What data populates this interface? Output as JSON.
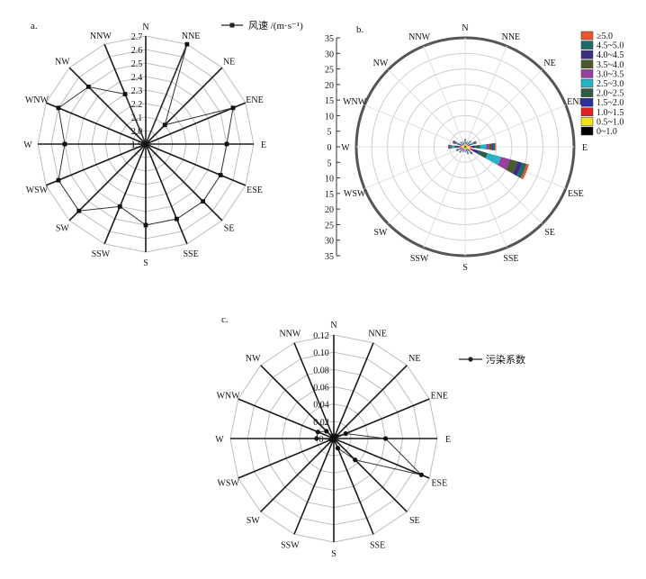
{
  "directions": [
    "N",
    "NNE",
    "NE",
    "ENE",
    "E",
    "ESE",
    "SE",
    "SSE",
    "S",
    "SSW",
    "SW",
    "WSW",
    "W",
    "WNW",
    "NW",
    "NNW"
  ],
  "panels": {
    "a": {
      "label": "a.",
      "legend": "风速 /(m·s⁻¹)"
    },
    "b": {
      "label": "b."
    },
    "c": {
      "label": "c.",
      "legend": "污染系数"
    }
  },
  "chart_data": [
    {
      "id": "a",
      "type": "radar",
      "categories": [
        "N",
        "NNE",
        "NE",
        "ENE",
        "E",
        "ESE",
        "SE",
        "SSE",
        "S",
        "SSW",
        "SW",
        "WSW",
        "W",
        "WNW",
        "NW",
        "NNW"
      ],
      "series": [
        {
          "name": "风速 /(m·s⁻¹)",
          "values": [
            1.9,
            2.7,
            2.1,
            2.6,
            2.5,
            2.5,
            2.5,
            2.5,
            2.5,
            2.4,
            2.6,
            2.6,
            2.5,
            2.6,
            2.5,
            2.3
          ]
        }
      ],
      "rlim": [
        1.9,
        2.7
      ],
      "rticks": [
        "1.9",
        "2.0",
        "2.1",
        "2.2",
        "2.3",
        "2.4",
        "2.5",
        "2.6",
        "2.7"
      ],
      "grid": true
    },
    {
      "id": "b",
      "type": "wind-rose",
      "categories": [
        "N",
        "NNE",
        "NE",
        "ENE",
        "E",
        "ESE",
        "SE",
        "SSE",
        "S",
        "SSW",
        "SW",
        "WSW",
        "W",
        "WNW",
        "NW",
        "NNW"
      ],
      "rlim": [
        0,
        35
      ],
      "rticks": [
        "35",
        "30",
        "25",
        "20",
        "15",
        "10",
        "5",
        "0",
        "5",
        "10",
        "15",
        "20",
        "25",
        "30",
        "35"
      ],
      "legend": [
        "≥5.0",
        "4.5~5.0",
        "4.0~4.5",
        "3.5~4.0",
        "3.0~3.5",
        "2.5~3.0",
        "2.0~2.5",
        "1.5~2.0",
        "1.0~1.5",
        "0.5~1.0",
        "0~1.0"
      ],
      "colors": [
        "#e8572a",
        "#1f6b6a",
        "#3b2f80",
        "#4a5a2e",
        "#9a3fa0",
        "#27b3c4",
        "#2d5e45",
        "#2a2f9a",
        "#e02222",
        "#f2e21a",
        "#000000"
      ],
      "series": [
        {
          "name": "0~1.0",
          "values": [
            0.4,
            0.4,
            0.4,
            0.4,
            0.5,
            0.5,
            0.4,
            0.4,
            0.4,
            0.4,
            0.4,
            0.4,
            0.4,
            0.4,
            0.4,
            0.4
          ]
        },
        {
          "name": "0.5~1.0",
          "values": [
            0.4,
            0.4,
            0.4,
            0.4,
            1.0,
            1.2,
            0.4,
            0.4,
            0.4,
            0.4,
            0.4,
            0.4,
            0.8,
            0.5,
            0.4,
            0.4
          ]
        },
        {
          "name": "1.0~1.5",
          "values": [
            0.3,
            0.2,
            0.3,
            0.3,
            0.8,
            1.0,
            0.3,
            0.3,
            0.2,
            0.2,
            0.3,
            0.3,
            0.6,
            0.4,
            0.2,
            0.2
          ]
        },
        {
          "name": "1.5~2.0",
          "values": [
            0.3,
            0.2,
            0.3,
            0.5,
            1.0,
            1.8,
            0.4,
            0.3,
            0.2,
            0.2,
            0.3,
            0.4,
            0.8,
            0.5,
            0.2,
            0.2
          ]
        },
        {
          "name": "2.0~2.5",
          "values": [
            0.3,
            0.2,
            0.3,
            0.5,
            1.5,
            3.0,
            0.4,
            0.3,
            0.2,
            0.2,
            0.3,
            0.4,
            0.8,
            0.6,
            0.2,
            0.2
          ]
        },
        {
          "name": "2.5~3.0",
          "values": [
            0.3,
            0.2,
            0.3,
            0.6,
            2.0,
            4.5,
            0.5,
            0.3,
            0.2,
            0.2,
            0.3,
            0.4,
            0.8,
            0.6,
            0.2,
            0.2
          ]
        },
        {
          "name": "3.0~3.5",
          "values": [
            0.2,
            0.1,
            0.2,
            0.4,
            1.0,
            3.0,
            0.3,
            0.2,
            0.1,
            0.1,
            0.2,
            0.3,
            0.5,
            0.5,
            0.2,
            0.1
          ]
        },
        {
          "name": "3.5~4.0",
          "values": [
            0.1,
            0.1,
            0.1,
            0.3,
            0.8,
            2.5,
            0.2,
            0.1,
            0.1,
            0.1,
            0.1,
            0.2,
            0.3,
            0.3,
            0.1,
            0.1
          ]
        },
        {
          "name": "4.0~4.5",
          "values": [
            0.1,
            0.0,
            0.1,
            0.2,
            0.5,
            1.5,
            0.1,
            0.1,
            0.0,
            0.0,
            0.1,
            0.1,
            0.2,
            0.2,
            0.1,
            0.0
          ]
        },
        {
          "name": "4.5~5.0",
          "values": [
            0.1,
            0.0,
            0.1,
            0.2,
            0.5,
            1.5,
            0.1,
            0.1,
            0.0,
            0.0,
            0.1,
            0.1,
            0.2,
            0.2,
            0.1,
            0.0
          ]
        },
        {
          "name": "≥5.0",
          "values": [
            0.0,
            0.0,
            0.0,
            0.1,
            0.3,
            0.8,
            0.1,
            0.0,
            0.0,
            0.0,
            0.0,
            0.1,
            0.1,
            0.1,
            0.0,
            0.0
          ]
        }
      ],
      "grid": true
    },
    {
      "id": "c",
      "type": "radar",
      "categories": [
        "N",
        "NNE",
        "NE",
        "ENE",
        "E",
        "ESE",
        "SE",
        "SSE",
        "S",
        "SSW",
        "SW",
        "WSW",
        "W",
        "WNW",
        "NW",
        "NNW"
      ],
      "series": [
        {
          "name": "污染系数",
          "values": [
            0.003,
            0.003,
            0.004,
            0.015,
            0.06,
            0.11,
            0.035,
            0.012,
            0.002,
            0.002,
            0.002,
            0.003,
            0.02,
            0.02,
            0.012,
            0.003
          ]
        }
      ],
      "rlim": [
        0,
        0.12
      ],
      "rticks": [
        "0",
        "0.02",
        "0.04",
        "0.06",
        "0.08",
        "0.10",
        "0.12"
      ],
      "grid": true
    }
  ]
}
